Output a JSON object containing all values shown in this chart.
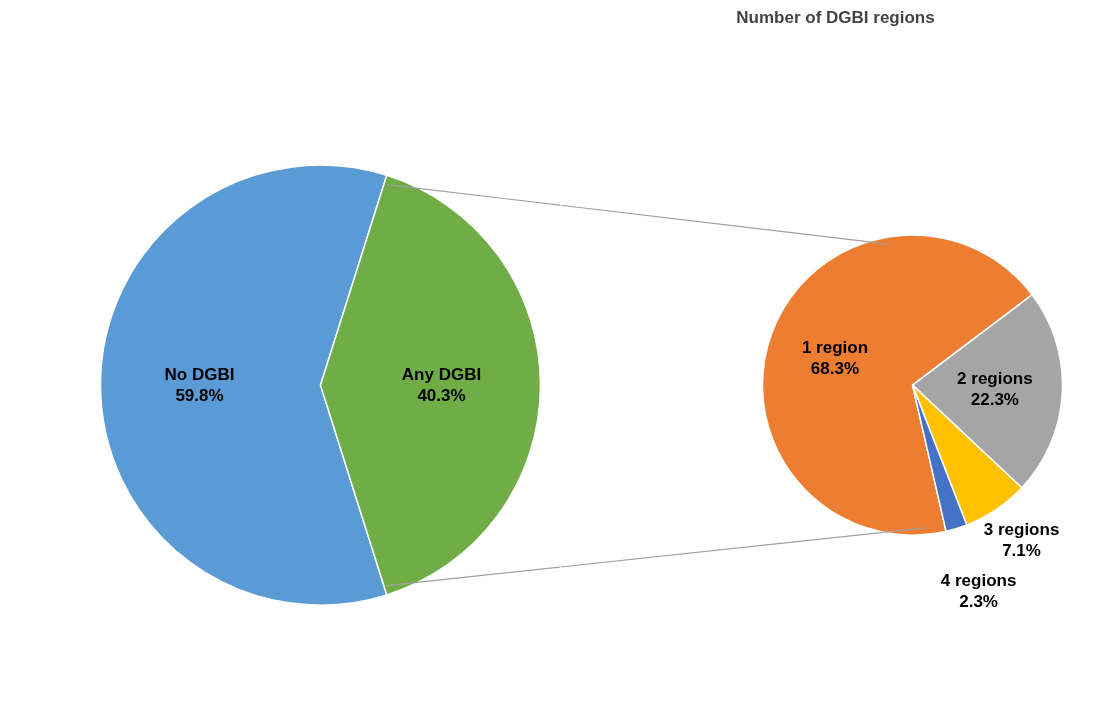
{
  "chart_data": [
    {
      "type": "pie",
      "categories": [
        "No DGBI",
        "Any DGBI"
      ],
      "values": [
        59.8,
        40.3
      ],
      "value_labels": [
        "59.8%",
        "40.3%"
      ],
      "colors": [
        "#5b9bd5",
        "#70ad47"
      ]
    },
    {
      "type": "pie",
      "title": "Number of DGBI regions",
      "categories": [
        "1 region",
        "2 regions",
        "3 regions",
        "4 regions"
      ],
      "values": [
        68.3,
        22.3,
        7.1,
        2.3
      ],
      "value_labels": [
        "68.3%",
        "22.3%",
        "7.1%",
        "2.3%"
      ],
      "colors": [
        "#ed7d31",
        "#a5a5a5",
        "#ffc000",
        "#4472c4"
      ]
    }
  ]
}
